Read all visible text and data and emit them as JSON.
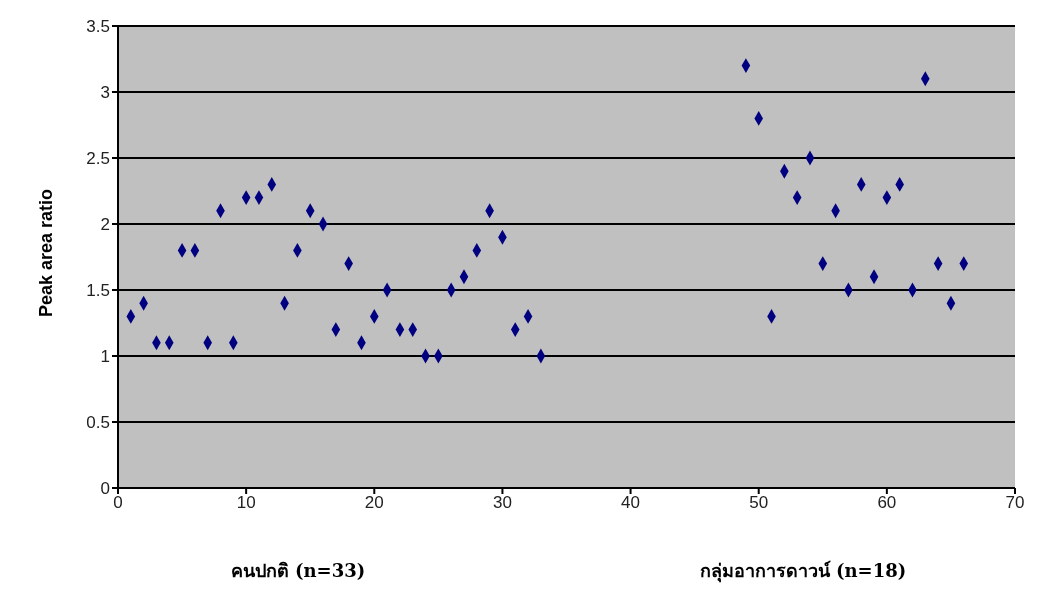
{
  "chart_data": {
    "type": "scatter",
    "ylabel": "Peak area ratio",
    "annotations": [
      "คนปกติ (n=33)",
      "กลุ่มอาการดาวน์ (n=18)"
    ],
    "x": [
      1,
      2,
      3,
      4,
      5,
      6,
      7,
      8,
      9,
      10,
      11,
      12,
      13,
      14,
      15,
      16,
      17,
      18,
      19,
      20,
      21,
      22,
      23,
      24,
      25,
      26,
      27,
      28,
      29,
      30,
      31,
      32,
      33,
      49,
      50,
      51,
      52,
      53,
      54,
      55,
      56,
      57,
      58,
      59,
      60,
      61,
      62,
      63,
      64,
      65,
      66
    ],
    "series": [
      {
        "color": "#000080",
        "values": [
          1.3,
          1.4,
          1.1,
          1.1,
          1.8,
          1.8,
          1.1,
          2.1,
          1.1,
          2.2,
          2.2,
          2.3,
          1.4,
          1.8,
          2.1,
          2.0,
          1.2,
          1.7,
          1.1,
          1.3,
          1.5,
          1.2,
          1.2,
          1.0,
          1.0,
          1.5,
          1.6,
          1.8,
          2.1,
          1.9,
          1.2,
          1.3,
          1.0,
          3.2,
          2.8,
          1.3,
          2.4,
          2.2,
          2.5,
          1.7,
          2.1,
          1.5,
          2.3,
          1.6,
          2.2,
          2.3,
          1.5,
          3.1,
          1.7,
          1.4,
          1.7
        ]
      }
    ],
    "xlim": [
      0,
      70
    ],
    "xticks": [
      0,
      10,
      20,
      30,
      40,
      50,
      60,
      70
    ],
    "ylim": [
      0,
      3.5
    ],
    "yticks": [
      0,
      0.5,
      1,
      1.5,
      2,
      2.5,
      3,
      3.5
    ],
    "grid": "y",
    "legend": false,
    "marker": "diamond"
  }
}
